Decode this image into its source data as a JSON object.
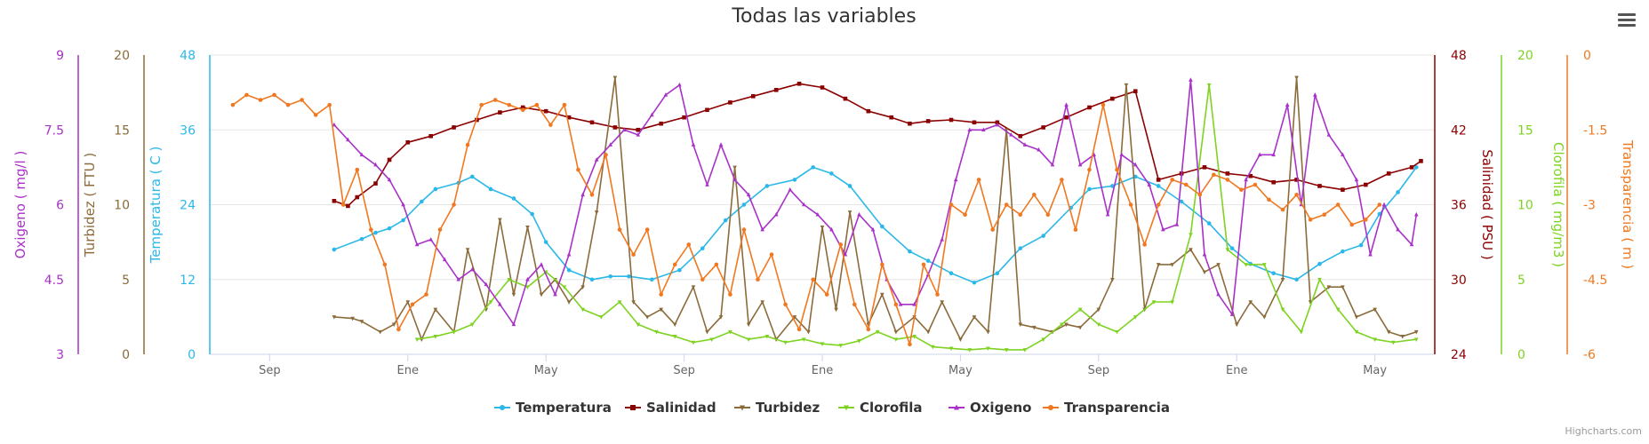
{
  "chart_data": {
    "type": "line",
    "title": "Todas las variables",
    "x_tick_labels": [
      "Sep",
      "Ene",
      "May",
      "Sep",
      "Ene",
      "May",
      "Sep",
      "Ene",
      "May"
    ],
    "left_axes": [
      {
        "id": "oxigeno",
        "title": "Oxigeno ( mg/l )",
        "color": "#A832C8",
        "ticks": [
          "3",
          "4.5",
          "6",
          "7.5",
          "9"
        ],
        "min": 3,
        "max": 9
      },
      {
        "id": "turbidez",
        "title": "Turbidez ( FTU )",
        "color": "#8B6B3A",
        "ticks": [
          "0",
          "5",
          "10",
          "15",
          "20"
        ],
        "min": 0,
        "max": 20
      },
      {
        "id": "temperatura",
        "title": "Temperatura ( C )",
        "color": "#2BB8E8",
        "ticks": [
          "0",
          "12",
          "24",
          "36",
          "48"
        ],
        "min": 0,
        "max": 48
      }
    ],
    "right_axes": [
      {
        "id": "salinidad",
        "title": "Salinidad ( PSU )",
        "color": "#8B0000",
        "ticks": [
          "24",
          "30",
          "36",
          "42",
          "48"
        ],
        "min": 24,
        "max": 48
      },
      {
        "id": "clorofila",
        "title": "Clorofila ( mg/m3 )",
        "color": "#7ED321",
        "ticks": [
          "0",
          "5",
          "10",
          "15",
          "20"
        ],
        "min": 0,
        "max": 20
      },
      {
        "id": "transparencia",
        "title": "Transparencia ( m )",
        "color": "#F07820",
        "ticks": [
          "-6",
          "-4.5",
          "-3",
          "-1.5",
          "0"
        ],
        "min": -6,
        "max": 0
      }
    ],
    "series": [
      {
        "name": "Temperatura",
        "color": "#2BB8E8",
        "marker": "circle",
        "x": [
          2.4,
          3.0,
          3.3,
          3.6,
          3.9,
          4.3,
          4.6,
          5.1,
          5.4,
          5.8,
          6.3,
          6.7,
          7.0,
          7.5,
          8.0,
          8.4,
          8.8,
          9.3,
          9.9,
          10.4,
          10.9,
          11.3,
          11.8,
          12.4,
          12.8,
          13.2,
          13.6,
          14.3,
          14.9,
          15.3,
          15.8,
          16.3,
          16.8,
          17.3,
          17.8,
          18.4,
          18.8,
          19.3,
          19.8,
          20.3,
          20.8,
          21.4,
          21.9,
          22.3,
          22.8,
          23.3,
          23.8,
          24.3,
          24.7,
          25.1,
          25.5,
          25.9
        ],
        "values": [
          16.8,
          18.5,
          19.5,
          20.2,
          21.5,
          24.5,
          26.5,
          27.5,
          28.5,
          26.5,
          25.0,
          22.5,
          18.0,
          13.5,
          12.0,
          12.5,
          12.5,
          12.0,
          13.5,
          17.0,
          21.5,
          24.0,
          27.0,
          28.0,
          30.0,
          29.0,
          27.0,
          20.5,
          16.5,
          15.0,
          13.0,
          11.5,
          13.0,
          17.0,
          19.0,
          23.5,
          26.5,
          27.0,
          28.5,
          27.0,
          24.5,
          21.0,
          17.0,
          14.5,
          13.0,
          12.0,
          14.5,
          16.5,
          17.5,
          22.5,
          26.0,
          30.0
        ]
      },
      {
        "name": "Salinidad",
        "color": "#8B0000",
        "marker": "square",
        "x": [
          2.4,
          2.7,
          2.9,
          3.3,
          3.6,
          4.0,
          4.5,
          5.0,
          5.5,
          6.0,
          6.5,
          7.0,
          7.5,
          8.0,
          8.5,
          9.0,
          9.5,
          10.0,
          10.5,
          11.0,
          11.5,
          12.0,
          12.5,
          13.0,
          13.5,
          14.0,
          14.5,
          14.9,
          15.3,
          15.8,
          16.3,
          16.8,
          17.3,
          17.8,
          18.3,
          18.8,
          19.3,
          19.8,
          20.3,
          20.8,
          21.3,
          21.8,
          22.3,
          22.8,
          23.3,
          23.8,
          24.3,
          24.8,
          25.3,
          25.8,
          26.0
        ],
        "values": [
          36.3,
          35.9,
          36.6,
          37.7,
          39.6,
          41.0,
          41.5,
          42.2,
          42.8,
          43.4,
          43.8,
          43.5,
          43.0,
          42.6,
          42.2,
          42.0,
          42.5,
          43.0,
          43.6,
          44.2,
          44.7,
          45.2,
          45.7,
          45.4,
          44.5,
          43.5,
          43.0,
          42.5,
          42.7,
          42.8,
          42.6,
          42.6,
          41.5,
          42.2,
          43.0,
          43.8,
          44.5,
          45.1,
          38.0,
          38.5,
          39.0,
          38.5,
          38.3,
          37.8,
          38.0,
          37.5,
          37.2,
          37.6,
          38.5,
          39.0,
          39.5
        ]
      },
      {
        "name": "Turbidez",
        "color": "#8B6B3A",
        "marker": "triangle-down",
        "x": [
          2.4,
          2.8,
          3.0,
          3.4,
          3.7,
          4.0,
          4.3,
          4.6,
          5.0,
          5.3,
          5.7,
          6.0,
          6.3,
          6.6,
          6.9,
          7.2,
          7.5,
          7.8,
          8.1,
          8.5,
          8.9,
          9.2,
          9.5,
          9.8,
          10.2,
          10.5,
          10.8,
          11.1,
          11.4,
          11.7,
          12.0,
          12.4,
          12.7,
          13.0,
          13.3,
          13.6,
          14.0,
          14.3,
          14.6,
          15.0,
          15.3,
          15.6,
          16.0,
          16.3,
          16.6,
          17.0,
          17.3,
          17.6,
          18.0,
          18.3,
          18.6,
          19.0,
          19.3,
          19.6,
          20.0,
          20.3,
          20.6,
          21.0,
          21.3,
          21.6,
          22.0,
          22.3,
          22.6,
          23.0,
          23.3,
          23.6,
          24.0,
          24.3,
          24.6,
          25.0,
          25.3,
          25.6,
          25.9
        ],
        "values": [
          2.5,
          2.4,
          2.2,
          1.5,
          2.0,
          3.5,
          1.0,
          3.0,
          1.5,
          7.0,
          3.0,
          9.0,
          4.0,
          8.5,
          4.0,
          5.0,
          3.5,
          4.5,
          9.5,
          18.5,
          3.5,
          2.5,
          3.0,
          2.0,
          4.5,
          1.5,
          2.5,
          12.5,
          2.0,
          3.5,
          1.0,
          2.5,
          1.5,
          8.5,
          3.0,
          9.5,
          2.0,
          4.0,
          1.5,
          2.5,
          1.5,
          3.5,
          1.0,
          2.5,
          1.5,
          15.0,
          2.0,
          1.8,
          1.5,
          2.0,
          1.8,
          3.0,
          5.0,
          18.0,
          3.0,
          6.0,
          6.0,
          7.0,
          5.5,
          6.0,
          2.0,
          3.5,
          2.5,
          5.0,
          18.5,
          3.5,
          4.5,
          4.5,
          2.5,
          3.0,
          1.5,
          1.2,
          1.5
        ]
      },
      {
        "name": "Clorofila",
        "color": "#7ED321",
        "marker": "triangle-down",
        "x": [
          4.2,
          4.6,
          5.0,
          5.4,
          5.8,
          6.2,
          6.6,
          7.0,
          7.4,
          7.8,
          8.2,
          8.6,
          9.0,
          9.4,
          9.8,
          10.2,
          10.6,
          11.0,
          11.4,
          11.8,
          12.2,
          12.6,
          13.0,
          13.4,
          13.8,
          14.2,
          14.6,
          15.0,
          15.4,
          15.8,
          16.2,
          16.6,
          17.0,
          17.4,
          17.8,
          18.2,
          18.6,
          19.0,
          19.4,
          19.8,
          20.2,
          20.6,
          21.0,
          21.4,
          21.8,
          22.2,
          22.6,
          23.0,
          23.4,
          23.8,
          24.2,
          24.6,
          25.0,
          25.4,
          25.9
        ],
        "values": [
          1.0,
          1.2,
          1.5,
          2.0,
          3.5,
          5.0,
          4.5,
          5.5,
          4.5,
          3.0,
          2.5,
          3.5,
          2.0,
          1.5,
          1.2,
          0.8,
          1.0,
          1.5,
          1.0,
          1.2,
          0.8,
          1.0,
          0.7,
          0.6,
          0.9,
          1.5,
          1.0,
          1.2,
          0.5,
          0.4,
          0.3,
          0.4,
          0.3,
          0.3,
          1.0,
          2.0,
          3.0,
          2.0,
          1.5,
          2.5,
          3.5,
          3.5,
          8.0,
          18.0,
          7.0,
          6.0,
          6.0,
          3.0,
          1.5,
          5.0,
          3.0,
          1.5,
          1.0,
          0.8,
          1.0
        ]
      },
      {
        "name": "Oxigeno",
        "color": "#A832C8",
        "marker": "triangle",
        "x": [
          2.4,
          2.7,
          3.0,
          3.3,
          3.6,
          3.9,
          4.2,
          4.5,
          4.8,
          5.1,
          5.4,
          5.7,
          6.0,
          6.3,
          6.6,
          6.9,
          7.2,
          7.5,
          7.8,
          8.1,
          8.4,
          8.7,
          9.0,
          9.3,
          9.6,
          9.9,
          10.2,
          10.5,
          10.8,
          11.1,
          11.4,
          11.7,
          12.0,
          12.3,
          12.6,
          12.9,
          13.2,
          13.5,
          13.8,
          14.1,
          14.4,
          14.7,
          15.0,
          15.3,
          15.6,
          15.9,
          16.2,
          16.5,
          16.8,
          17.1,
          17.4,
          17.7,
          18.0,
          18.3,
          18.6,
          18.9,
          19.2,
          19.5,
          19.8,
          20.1,
          20.4,
          20.7,
          21.0,
          21.3,
          21.6,
          21.9,
          22.2,
          22.5,
          22.8,
          23.1,
          23.4,
          23.7,
          24.0,
          24.3,
          24.6,
          24.9,
          25.2,
          25.5,
          25.8,
          25.9
        ],
        "values": [
          7.6,
          7.3,
          7.0,
          6.8,
          6.5,
          6.0,
          5.2,
          5.3,
          4.9,
          4.5,
          4.7,
          4.4,
          4.0,
          3.6,
          4.5,
          4.8,
          4.2,
          5.0,
          6.2,
          6.9,
          7.2,
          7.5,
          7.4,
          7.8,
          8.2,
          8.4,
          7.2,
          6.4,
          7.2,
          6.5,
          6.2,
          5.5,
          5.8,
          6.3,
          6.0,
          5.8,
          5.5,
          5.0,
          5.8,
          5.5,
          4.5,
          4.0,
          4.0,
          4.6,
          5.3,
          6.5,
          7.5,
          7.5,
          7.6,
          7.4,
          7.2,
          7.1,
          6.8,
          8.0,
          6.8,
          7.0,
          5.8,
          7.0,
          6.8,
          6.4,
          5.5,
          5.6,
          8.5,
          5.0,
          4.2,
          3.8,
          6.5,
          7.0,
          7.0,
          8.0,
          6.0,
          8.2,
          7.4,
          7.0,
          6.5,
          5.0,
          6.0,
          5.5,
          5.2,
          5.8
        ]
      },
      {
        "name": "Transparencia",
        "color": "#F07820",
        "marker": "circle",
        "x": [
          0.2,
          0.5,
          0.8,
          1.1,
          1.4,
          1.7,
          2.0,
          2.3,
          2.6,
          2.9,
          3.2,
          3.5,
          3.8,
          4.1,
          4.4,
          4.7,
          5.0,
          5.3,
          5.6,
          5.9,
          6.2,
          6.5,
          6.8,
          7.1,
          7.4,
          7.7,
          8.0,
          8.3,
          8.6,
          8.9,
          9.2,
          9.5,
          9.8,
          10.1,
          10.4,
          10.7,
          11.0,
          11.3,
          11.6,
          11.9,
          12.2,
          12.5,
          12.8,
          13.1,
          13.4,
          13.7,
          14.0,
          14.3,
          14.6,
          14.9,
          15.2,
          15.5,
          15.8,
          16.1,
          16.4,
          16.7,
          17.0,
          17.3,
          17.6,
          17.9,
          18.2,
          18.5,
          18.8,
          19.1,
          19.4,
          19.7,
          20.0,
          20.3,
          20.6,
          20.9,
          21.2,
          21.5,
          21.8,
          22.1,
          22.4,
          22.7,
          23.0,
          23.3,
          23.6,
          23.9,
          24.2,
          24.5,
          24.8,
          25.1
        ],
        "values": [
          -1.0,
          -0.8,
          -0.9,
          -0.8,
          -1.0,
          -0.9,
          -1.2,
          -1.0,
          -3.0,
          -2.3,
          -3.5,
          -4.2,
          -5.5,
          -5.0,
          -4.8,
          -3.5,
          -3.0,
          -1.8,
          -1.0,
          -0.9,
          -1.0,
          -1.1,
          -1.0,
          -1.4,
          -1.0,
          -2.3,
          -2.8,
          -2.0,
          -3.5,
          -4.0,
          -3.5,
          -4.8,
          -4.2,
          -3.8,
          -4.5,
          -4.2,
          -4.8,
          -3.5,
          -4.5,
          -4.0,
          -5.0,
          -5.5,
          -4.5,
          -4.8,
          -3.8,
          -5.0,
          -5.5,
          -4.2,
          -5.0,
          -5.8,
          -4.2,
          -4.8,
          -3.0,
          -3.2,
          -2.5,
          -3.5,
          -3.0,
          -3.2,
          -2.8,
          -3.2,
          -2.5,
          -3.5,
          -2.3,
          -1.0,
          -2.3,
          -3.0,
          -3.8,
          -3.0,
          -2.5,
          -2.6,
          -2.8,
          -2.4,
          -2.5,
          -2.7,
          -2.6,
          -2.9,
          -3.1,
          -2.8,
          -3.3,
          -3.2,
          -3.0,
          -3.4,
          -3.3,
          -3.0
        ]
      }
    ],
    "legend": {
      "position": "bottom-center",
      "items": [
        "Temperatura",
        "Salinidad",
        "Turbidez",
        "Clorofila",
        "Oxigeno",
        "Transparencia"
      ]
    },
    "grid": true,
    "credits": "Highcharts.com"
  }
}
